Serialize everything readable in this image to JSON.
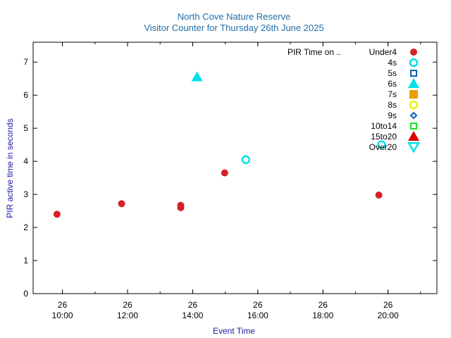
{
  "chart_data": {
    "type": "scatter",
    "title": "North Cove Nature Reserve",
    "subtitle": "Visitor Counter for Thursday 26th June 2025",
    "xlabel": "Event Time",
    "ylabel": "PIR active time in seconds",
    "xlim": [
      "09:06",
      "21:30"
    ],
    "ylim": [
      0,
      7.6
    ],
    "yticks": [
      0,
      1,
      2,
      3,
      4,
      5,
      6,
      7
    ],
    "xticks": [
      {
        "time": "10:00",
        "day": "26",
        "label": "10:00"
      },
      {
        "time": "12:00",
        "day": "26",
        "label": "12:00"
      },
      {
        "time": "14:00",
        "day": "26",
        "label": "14:00"
      },
      {
        "time": "16:00",
        "day": "26",
        "label": "16:00"
      },
      {
        "time": "18:00",
        "day": "26",
        "label": "18:00"
      },
      {
        "time": "20:00",
        "day": "26",
        "label": "20:00"
      }
    ],
    "xminor": [
      "09:00",
      "10:00",
      "11:00",
      "12:00",
      "13:00",
      "14:00",
      "15:00",
      "16:00",
      "17:00",
      "18:00",
      "19:00",
      "20:00",
      "21:00"
    ],
    "legend_title": "PIR Time on ..",
    "legend_position": "top-right",
    "grid": false,
    "series": [
      {
        "name": "Under4",
        "color": "#d62028",
        "marker": "filled-circle",
        "points": [
          {
            "x": "09:50",
            "y": 2.4
          },
          {
            "x": "11:49",
            "y": 2.72
          },
          {
            "x": "13:38",
            "y": 2.67
          },
          {
            "x": "13:38",
            "y": 2.6
          },
          {
            "x": "14:59",
            "y": 3.65
          },
          {
            "x": "19:43",
            "y": 2.98
          }
        ]
      },
      {
        "name": "4s",
        "color": "#00e0e8",
        "marker": "open-circle",
        "points": [
          {
            "x": "15:38",
            "y": 4.05
          },
          {
            "x": "19:48",
            "y": 4.5
          }
        ]
      },
      {
        "name": "5s",
        "color": "#1060b0",
        "marker": "open-square",
        "points": []
      },
      {
        "name": "6s",
        "color": "#00e0e8",
        "marker": "filled-triangle-up",
        "points": [
          {
            "x": "14:08",
            "y": 6.55
          }
        ]
      },
      {
        "name": "7s",
        "color": "#e8a000",
        "marker": "filled-square",
        "points": []
      },
      {
        "name": "8s",
        "color": "#f0f000",
        "marker": "open-circle",
        "points": []
      },
      {
        "name": "9s",
        "color": "#1060b0",
        "marker": "open-diamond",
        "points": []
      },
      {
        "name": "10to14",
        "color": "#20e020",
        "marker": "open-square",
        "points": []
      },
      {
        "name": "15to20",
        "color": "#e00000",
        "marker": "filled-triangle-up",
        "points": []
      },
      {
        "name": "Over20",
        "color": "#00e0e8",
        "marker": "open-triangle-down",
        "points": []
      }
    ]
  }
}
